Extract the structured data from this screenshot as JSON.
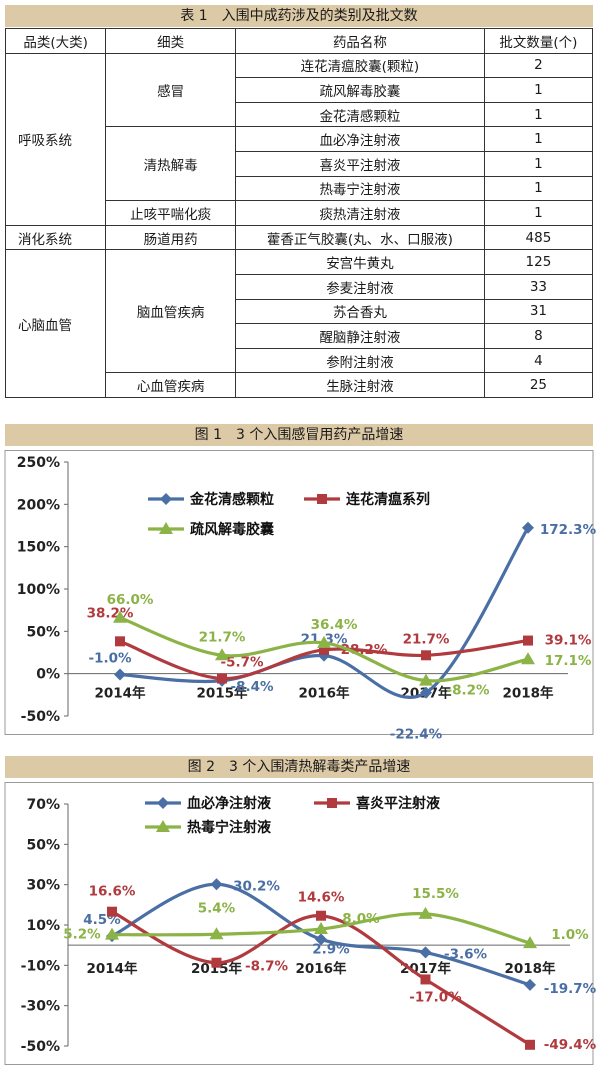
{
  "table": {
    "title": "表 1　入围中成药涉及的类别及批文数",
    "headers": [
      "品类(大类)",
      "细类",
      "药品名称",
      "批文数量(个)"
    ],
    "groups": [
      {
        "category": "呼吸系统",
        "subs": [
          {
            "name": "感冒",
            "items": [
              [
                "连花清瘟胶囊(颗粒)",
                "2"
              ],
              [
                "疏风解毒胶囊",
                "1"
              ],
              [
                "金花清感颗粒",
                "1"
              ]
            ]
          },
          {
            "name": "清热解毒",
            "items": [
              [
                "血必净注射液",
                "1"
              ],
              [
                "喜炎平注射液",
                "1"
              ],
              [
                "热毒宁注射液",
                "1"
              ]
            ]
          },
          {
            "name": "止咳平喘化痰",
            "items": [
              [
                "痰热清注射液",
                "1"
              ]
            ]
          }
        ]
      },
      {
        "category": "消化系统",
        "subs": [
          {
            "name": "肠道用药",
            "items": [
              [
                "藿香正气胶囊(丸、水、口服液)",
                "485"
              ]
            ]
          }
        ]
      },
      {
        "category": "心脑血管",
        "subs": [
          {
            "name": "脑血管疾病",
            "items": [
              [
                "安宫牛黄丸",
                "125"
              ],
              [
                "参麦注射液",
                "33"
              ],
              [
                "苏合香丸",
                "31"
              ],
              [
                "醒脑静注射液",
                "8"
              ],
              [
                "参附注射液",
                "4"
              ]
            ]
          },
          {
            "name": "心血管疾病",
            "items": [
              [
                "生脉注射液",
                "25"
              ]
            ]
          }
        ]
      }
    ]
  },
  "chart_data": [
    {
      "type": "line",
      "title": "图 1　3 个入围感冒用药产品增速",
      "categories": [
        "2014年",
        "2015年",
        "2016年",
        "2017年",
        "2018年"
      ],
      "ylim": [
        -50,
        250
      ],
      "yticks": [
        "250%",
        "200%",
        "150%",
        "100%",
        "50%",
        "0%",
        "-50%"
      ],
      "series": [
        {
          "name": "金花清感颗粒",
          "color": "#4a6fa5",
          "values": [
            -1.0,
            -8.4,
            21.3,
            -22.4,
            172.3
          ],
          "labels": [
            "-1.0%",
            "-8.4%",
            "21.3%",
            "-22.4%",
            "172.3%"
          ]
        },
        {
          "name": "连花清瘟系列",
          "color": "#b03a3e",
          "values": [
            38.2,
            -5.7,
            28.2,
            21.7,
            39.1
          ],
          "labels": [
            "38.2%",
            "-5.7%",
            "28.2%",
            "21.7%",
            "39.1%"
          ]
        },
        {
          "name": "疏风解毒胶囊",
          "color": "#8bb346",
          "values": [
            66.0,
            21.7,
            36.4,
            -8.2,
            17.1
          ],
          "labels": [
            "66.0%",
            "21.7%",
            "36.4%",
            "-8.2%",
            "17.1%"
          ]
        }
      ]
    },
    {
      "type": "line",
      "title": "图 2　3 个入围清热解毒类产品增速",
      "categories": [
        "2014年",
        "2015年",
        "2016年",
        "2017年",
        "2018年"
      ],
      "ylim": [
        -50,
        70
      ],
      "yticks": [
        "70%",
        "50%",
        "30%",
        "10%",
        "-10%",
        "-30%",
        "-50%"
      ],
      "series": [
        {
          "name": "血必净注射液",
          "color": "#4a6fa5",
          "values": [
            4.5,
            30.2,
            2.9,
            -3.6,
            -19.7
          ],
          "labels": [
            "4.5%",
            "30.2%",
            "2.9%",
            "-3.6%",
            "-19.7%"
          ]
        },
        {
          "name": "喜炎平注射液",
          "color": "#b03a3e",
          "values": [
            16.6,
            -8.7,
            14.6,
            -17.0,
            -49.4
          ],
          "labels": [
            "16.6%",
            "-8.7%",
            "14.6%",
            "-17.0%",
            "-49.4%"
          ]
        },
        {
          "name": "热毒宁注射液",
          "color": "#8bb346",
          "values": [
            5.2,
            5.4,
            8.0,
            15.5,
            1.0
          ],
          "labels": [
            "5.2%",
            "5.4%",
            "8.0%",
            "15.5%",
            "1.0%"
          ]
        }
      ]
    }
  ]
}
